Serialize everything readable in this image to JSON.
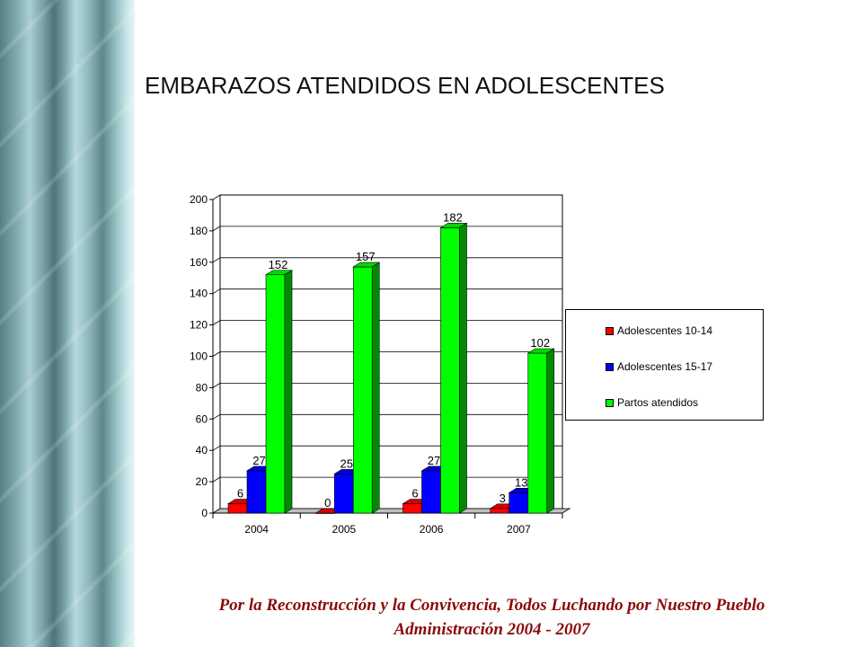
{
  "page": {
    "title": "EMBARAZOS ATENDIDOS EN ADOLESCENTES",
    "footer_line1": "Por la Reconstrucción y la Convivencia, Todos Luchando por Nuestro Pueblo",
    "footer_line2": "Administración 2004 - 2007"
  },
  "chart_data": {
    "type": "bar",
    "title": "",
    "xlabel": "",
    "ylabel": "",
    "categories": [
      "2004",
      "2005",
      "2006",
      "2007"
    ],
    "ylim": [
      0,
      200
    ],
    "yticks": [
      0,
      20,
      40,
      60,
      80,
      100,
      120,
      140,
      160,
      180,
      200
    ],
    "grid": true,
    "legend_position": "right",
    "series": [
      {
        "name": "Adolescentes 10-14",
        "color": "#ff0000",
        "values": [
          6,
          0,
          6,
          3
        ]
      },
      {
        "name": "Adolescentes 15-17",
        "color": "#0000ff",
        "values": [
          27,
          25,
          27,
          13
        ]
      },
      {
        "name": "Partos atendidos",
        "color": "#00ff00",
        "values": [
          152,
          157,
          182,
          102
        ]
      }
    ]
  }
}
